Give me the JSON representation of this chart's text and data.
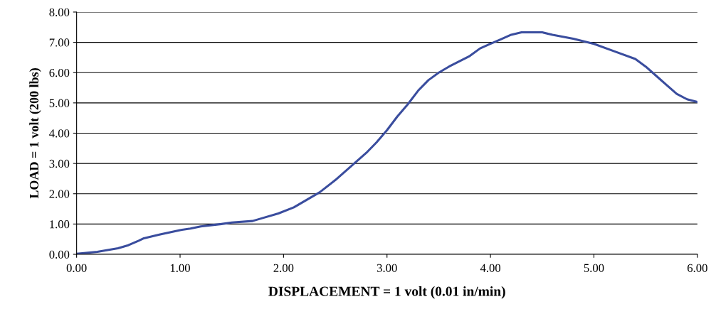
{
  "chart_data": {
    "type": "line",
    "xlabel": "DISPLACEMENT = 1 volt (0.01 in/min)",
    "ylabel": "LOAD = 1 volt (200 lbs)",
    "xlim": [
      0,
      6
    ],
    "ylim": [
      0,
      8
    ],
    "xticks": [
      {
        "value": 0,
        "label": "0.00"
      },
      {
        "value": 1,
        "label": "1.00"
      },
      {
        "value": 2,
        "label": "2.00"
      },
      {
        "value": 3,
        "label": "3.00"
      },
      {
        "value": 4,
        "label": "4.00"
      },
      {
        "value": 5,
        "label": "5.00"
      },
      {
        "value": 6,
        "label": "6.00"
      }
    ],
    "yticks": [
      {
        "value": 0,
        "label": "0.00"
      },
      {
        "value": 1,
        "label": "1.00"
      },
      {
        "value": 2,
        "label": "2.00"
      },
      {
        "value": 3,
        "label": "3.00"
      },
      {
        "value": 4,
        "label": "4.00"
      },
      {
        "value": 5,
        "label": "5.00"
      },
      {
        "value": 6,
        "label": "6.00"
      },
      {
        "value": 7,
        "label": "7.00"
      },
      {
        "value": 8,
        "label": "8.00"
      }
    ],
    "grid": "y",
    "marker": "none",
    "line_style": "solid",
    "series": [
      {
        "color": "#3a4d9e",
        "x": [
          0,
          0.2,
          0.4,
          0.5,
          0.6,
          0.65,
          0.8,
          1.0,
          1.1,
          1.2,
          1.4,
          1.5,
          1.7,
          1.8,
          1.95,
          2.1,
          2.2,
          2.35,
          2.5,
          2.65,
          2.8,
          2.9,
          3.0,
          3.1,
          3.2,
          3.3,
          3.4,
          3.5,
          3.6,
          3.8,
          3.9,
          4.0,
          4.1,
          4.2,
          4.3,
          4.5,
          4.6,
          4.8,
          5.0,
          5.2,
          5.4,
          5.5,
          5.6,
          5.7,
          5.8,
          5.9,
          6.0
        ],
        "values": [
          0.02,
          0.08,
          0.2,
          0.3,
          0.45,
          0.53,
          0.65,
          0.8,
          0.85,
          0.92,
          1.0,
          1.05,
          1.1,
          1.2,
          1.35,
          1.55,
          1.75,
          2.05,
          2.45,
          2.9,
          3.35,
          3.7,
          4.1,
          4.55,
          4.95,
          5.4,
          5.75,
          6.0,
          6.2,
          6.55,
          6.8,
          6.95,
          7.1,
          7.25,
          7.33,
          7.33,
          7.25,
          7.12,
          6.95,
          6.7,
          6.45,
          6.2,
          5.9,
          5.6,
          5.3,
          5.12,
          5.03
        ]
      }
    ]
  }
}
